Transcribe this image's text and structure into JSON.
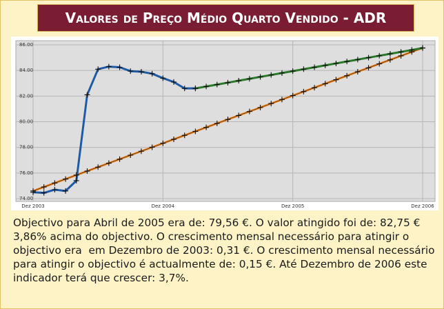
{
  "chart_data": {
    "type": "line",
    "title": "Valores de Preço Médio Quarto Vendido - ADR",
    "categories": [
      "Dez 2003",
      null,
      null,
      null,
      null,
      null,
      null,
      null,
      null,
      null,
      null,
      null,
      "Dez 2004",
      null,
      null,
      null,
      null,
      null,
      null,
      null,
      null,
      null,
      null,
      null,
      "Dez 2005",
      null,
      null,
      null,
      null,
      null,
      null,
      null,
      null,
      null,
      null,
      null,
      "Dez 2006"
    ],
    "series": [
      {
        "color": "#f08a2a",
        "values": [
          74.6,
          74.91,
          75.22,
          75.53,
          75.84,
          76.15,
          76.46,
          76.77,
          77.08,
          77.39,
          77.7,
          78.01,
          78.32,
          78.63,
          78.94,
          79.25,
          79.56,
          79.87,
          80.18,
          80.49,
          80.8,
          81.11,
          81.42,
          81.73,
          82.04,
          82.35,
          82.66,
          82.97,
          83.28,
          83.59,
          83.9,
          84.21,
          84.52,
          84.83,
          85.14,
          85.45,
          85.76
        ]
      },
      {
        "color": "#1f5aa6",
        "values": [
          74.5,
          74.45,
          74.7,
          74.6,
          75.4,
          82.1,
          84.1,
          84.3,
          84.25,
          83.95,
          83.9,
          83.75,
          83.4,
          83.1,
          82.6,
          82.6,
          null,
          null,
          null,
          null,
          null,
          null,
          null,
          null,
          null,
          null,
          null,
          null,
          null,
          null,
          null,
          null,
          null,
          null,
          null,
          null,
          null
        ]
      },
      {
        "color": "#2a7a2a",
        "values": [
          null,
          null,
          null,
          null,
          null,
          null,
          null,
          null,
          null,
          null,
          null,
          null,
          null,
          null,
          null,
          82.6,
          82.75,
          82.9,
          83.05,
          83.2,
          83.35,
          83.5,
          83.65,
          83.8,
          83.95,
          84.1,
          84.25,
          84.4,
          84.55,
          84.7,
          84.85,
          85,
          85.15,
          85.3,
          85.45,
          85.6,
          85.75
        ]
      }
    ],
    "ylim": [
      74,
      86
    ],
    "yticks": [
      {
        "value": 74,
        "label": "74.00"
      },
      {
        "value": 76,
        "label": "76.00"
      },
      {
        "value": 78,
        "label": "78.00"
      },
      {
        "value": 80,
        "label": "80.00"
      },
      {
        "value": 82,
        "label": "82.00"
      },
      {
        "value": 84,
        "label": "84.00"
      },
      {
        "value": 86,
        "label": "86.00"
      }
    ],
    "grid": true,
    "markers": true,
    "description": "Objectivo para Abril de 2005 era de: 79,56 €. O valor atingido foi de: 82,75 € 3,86% acima do objectivo. O crescimento mensal necessário para atingir o objectivo era  em Dezembro de 2003: 0,31 €. O crescimento mensal necessário para atingir o objectivo é actualmente de: 0,15 €. Até Dezembro de 2006 este indicador terá que crescer: 3,7%."
  }
}
